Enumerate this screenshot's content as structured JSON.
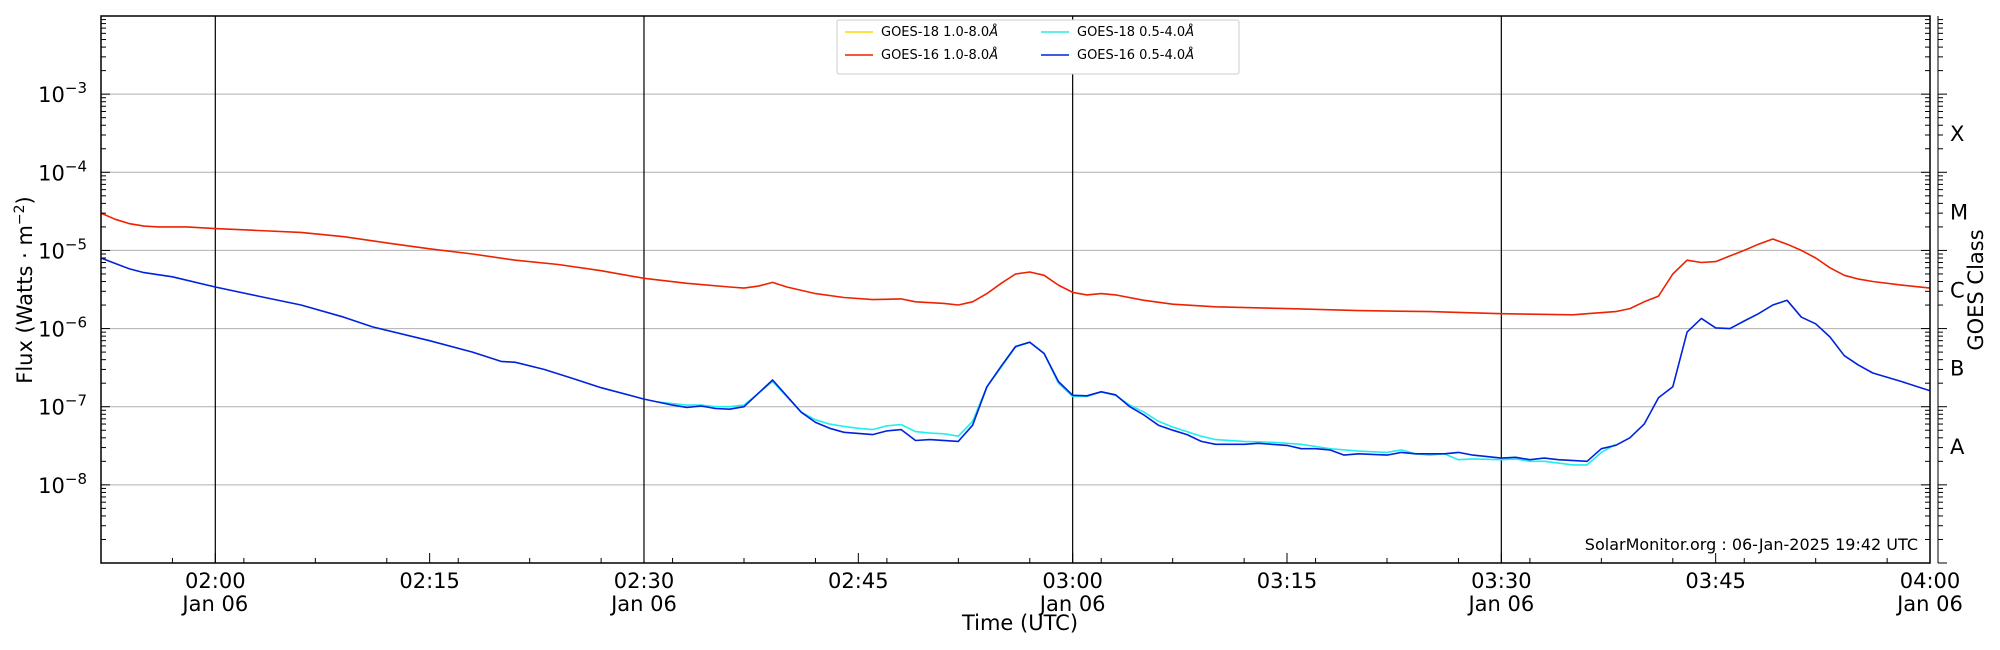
{
  "chart_data": {
    "type": "line",
    "xlabel": "Time (UTC)",
    "ylabel": "Flux (Watts · m",
    "ylabel_sup": "−2",
    "ylabel_right": "GOES Class",
    "x_range": [
      "01:52",
      "04:00"
    ],
    "ylim": [
      1e-09,
      0.01
    ],
    "yscale": "log",
    "grid": "horizontal",
    "legend_position": "top-center",
    "footer": "SolarMonitor.org : 06-Jan-2025 19:42 UTC",
    "x_ticks": [
      {
        "t": "02:00",
        "label": "02:00",
        "date": "Jan 06"
      },
      {
        "t": "02:15",
        "label": "02:15",
        "date": ""
      },
      {
        "t": "02:30",
        "label": "02:30",
        "date": "Jan 06"
      },
      {
        "t": "02:45",
        "label": "02:45",
        "date": ""
      },
      {
        "t": "03:00",
        "label": "03:00",
        "date": "Jan 06"
      },
      {
        "t": "03:15",
        "label": "03:15",
        "date": ""
      },
      {
        "t": "03:30",
        "label": "03:30",
        "date": "Jan 06"
      },
      {
        "t": "03:45",
        "label": "03:45",
        "date": ""
      },
      {
        "t": "04:00",
        "label": "04:00",
        "date": "Jan 06"
      }
    ],
    "y_ticks": [
      {
        "value": 1e-08,
        "mantissa": "10",
        "exp": "−8"
      },
      {
        "value": 1e-07,
        "mantissa": "10",
        "exp": "−7"
      },
      {
        "value": 1e-06,
        "mantissa": "10",
        "exp": "−6"
      },
      {
        "value": 1e-05,
        "mantissa": "10",
        "exp": "−5"
      },
      {
        "value": 0.0001,
        "mantissa": "10",
        "exp": "−4"
      },
      {
        "value": 0.001,
        "mantissa": "10",
        "exp": "−3"
      }
    ],
    "vlines": [
      "02:00",
      "02:30",
      "03:00",
      "03:30"
    ],
    "goes_classes": [
      {
        "label": "A",
        "value": 3.16e-08
      },
      {
        "label": "B",
        "value": 3.16e-07
      },
      {
        "label": "C",
        "value": 3.16e-06
      },
      {
        "label": "M",
        "value": 3.16e-05
      },
      {
        "label": "X",
        "value": 0.000316
      }
    ],
    "series": [
      {
        "name": "GOES-18 1.0-8.0",
        "unit": "Å",
        "color": "#ffd700",
        "points": []
      },
      {
        "name": "GOES-16 1.0-8.0",
        "unit": "Å",
        "color": "#ee2200",
        "points": [
          [
            "01:52",
            3e-05
          ],
          [
            "01:53",
            2.5e-05
          ],
          [
            "01:54",
            2.2e-05
          ],
          [
            "01:55",
            2.05e-05
          ],
          [
            "01:56",
            2e-05
          ],
          [
            "01:58",
            2e-05
          ],
          [
            "02:00",
            1.9e-05
          ],
          [
            "02:03",
            1.8e-05
          ],
          [
            "02:06",
            1.7e-05
          ],
          [
            "02:09",
            1.5e-05
          ],
          [
            "02:12",
            1.25e-05
          ],
          [
            "02:15",
            1.05e-05
          ],
          [
            "02:18",
            9e-06
          ],
          [
            "02:21",
            7.5e-06
          ],
          [
            "02:24",
            6.6e-06
          ],
          [
            "02:27",
            5.5e-06
          ],
          [
            "02:30",
            4.4e-06
          ],
          [
            "02:33",
            3.8e-06
          ],
          [
            "02:36",
            3.4e-06
          ],
          [
            "02:37",
            3.3e-06
          ],
          [
            "02:38",
            3.5e-06
          ],
          [
            "02:39",
            3.9e-06
          ],
          [
            "02:40",
            3.4e-06
          ],
          [
            "02:42",
            2.8e-06
          ],
          [
            "02:44",
            2.5e-06
          ],
          [
            "02:46",
            2.35e-06
          ],
          [
            "02:48",
            2.4e-06
          ],
          [
            "02:49",
            2.2e-06
          ],
          [
            "02:51",
            2.1e-06
          ],
          [
            "02:52",
            2e-06
          ],
          [
            "02:53",
            2.2e-06
          ],
          [
            "02:54",
            2.8e-06
          ],
          [
            "02:55",
            3.8e-06
          ],
          [
            "02:56",
            5e-06
          ],
          [
            "02:57",
            5.3e-06
          ],
          [
            "02:58",
            4.8e-06
          ],
          [
            "02:59",
            3.6e-06
          ],
          [
            "03:00",
            2.9e-06
          ],
          [
            "03:01",
            2.7e-06
          ],
          [
            "03:02",
            2.8e-06
          ],
          [
            "03:03",
            2.7e-06
          ],
          [
            "03:05",
            2.3e-06
          ],
          [
            "03:07",
            2.05e-06
          ],
          [
            "03:10",
            1.9e-06
          ],
          [
            "03:15",
            1.8e-06
          ],
          [
            "03:20",
            1.7e-06
          ],
          [
            "03:25",
            1.65e-06
          ],
          [
            "03:30",
            1.55e-06
          ],
          [
            "03:35",
            1.5e-06
          ],
          [
            "03:36",
            1.55e-06
          ],
          [
            "03:38",
            1.65e-06
          ],
          [
            "03:39",
            1.8e-06
          ],
          [
            "03:40",
            2.2e-06
          ],
          [
            "03:41",
            2.6e-06
          ],
          [
            "03:42",
            5e-06
          ],
          [
            "03:43",
            7.5e-06
          ],
          [
            "03:44",
            7e-06
          ],
          [
            "03:45",
            7.2e-06
          ],
          [
            "03:46",
            8.5e-06
          ],
          [
            "03:47",
            1e-05
          ],
          [
            "03:48",
            1.2e-05
          ],
          [
            "03:49",
            1.4e-05
          ],
          [
            "03:50",
            1.2e-05
          ],
          [
            "03:51",
            1e-05
          ],
          [
            "03:52",
            8e-06
          ],
          [
            "03:53",
            6e-06
          ],
          [
            "03:54",
            4.8e-06
          ],
          [
            "03:55",
            4.3e-06
          ],
          [
            "03:56",
            4e-06
          ],
          [
            "03:58",
            3.6e-06
          ],
          [
            "04:00",
            3.3e-06
          ]
        ]
      },
      {
        "name": "GOES-18 0.5-4.0",
        "unit": "Å",
        "color": "#22eeee",
        "points": [
          [
            "02:31",
            1.15e-07
          ],
          [
            "02:32",
            1.1e-07
          ],
          [
            "02:33",
            1.05e-07
          ],
          [
            "02:34",
            1.05e-07
          ],
          [
            "02:35",
            1e-07
          ],
          [
            "02:36",
            1e-07
          ],
          [
            "02:37",
            1.05e-07
          ],
          [
            "02:39",
            2.1e-07
          ],
          [
            "02:41",
            8.5e-08
          ],
          [
            "02:42",
            6.8e-08
          ],
          [
            "02:43",
            6e-08
          ],
          [
            "02:44",
            5.6e-08
          ],
          [
            "02:45",
            5.3e-08
          ],
          [
            "02:46",
            5.1e-08
          ],
          [
            "02:47",
            5.7e-08
          ],
          [
            "02:48",
            5.9e-08
          ],
          [
            "02:49",
            4.8e-08
          ],
          [
            "02:50",
            4.6e-08
          ],
          [
            "02:51",
            4.5e-08
          ],
          [
            "02:52",
            4.2e-08
          ],
          [
            "02:53",
            6.5e-08
          ],
          [
            "02:54",
            1.8e-07
          ],
          [
            "02:55",
            3.2e-07
          ],
          [
            "02:56",
            5.8e-07
          ],
          [
            "02:57",
            6.7e-07
          ],
          [
            "02:58",
            4.8e-07
          ],
          [
            "02:59",
            2e-07
          ],
          [
            "03:00",
            1.35e-07
          ],
          [
            "03:01",
            1.35e-07
          ],
          [
            "03:02",
            1.55e-07
          ],
          [
            "03:03",
            1.4e-07
          ],
          [
            "03:04",
            1.05e-07
          ],
          [
            "03:05",
            8.5e-08
          ],
          [
            "03:06",
            6.5e-08
          ],
          [
            "03:07",
            5.5e-08
          ],
          [
            "03:08",
            4.8e-08
          ],
          [
            "03:09",
            4.2e-08
          ],
          [
            "03:10",
            3.8e-08
          ],
          [
            "03:12",
            3.6e-08
          ],
          [
            "03:14",
            3.5e-08
          ],
          [
            "03:16",
            3.3e-08
          ],
          [
            "03:18",
            2.9e-08
          ],
          [
            "03:20",
            2.7e-08
          ],
          [
            "03:22",
            2.6e-08
          ],
          [
            "03:23",
            2.8e-08
          ],
          [
            "03:24",
            2.5e-08
          ],
          [
            "03:25",
            2.4e-08
          ],
          [
            "03:26",
            2.5e-08
          ],
          [
            "03:27",
            2.1e-08
          ],
          [
            "03:28",
            2.15e-08
          ],
          [
            "03:30",
            2.1e-08
          ],
          [
            "03:31",
            2.15e-08
          ],
          [
            "03:32",
            2e-08
          ],
          [
            "03:33",
            2e-08
          ],
          [
            "03:34",
            1.9e-08
          ],
          [
            "03:35",
            1.8e-08
          ],
          [
            "03:36",
            1.8e-08
          ],
          [
            "03:37",
            2.6e-08
          ],
          [
            "03:38",
            3.3e-08
          ]
        ]
      },
      {
        "name": "GOES-16 0.5-4.0",
        "unit": "Å",
        "color": "#0022dd",
        "points": [
          [
            "01:52",
            8e-06
          ],
          [
            "01:53",
            6.8e-06
          ],
          [
            "01:54",
            5.8e-06
          ],
          [
            "01:55",
            5.2e-06
          ],
          [
            "01:57",
            4.6e-06
          ],
          [
            "02:00",
            3.4e-06
          ],
          [
            "02:03",
            2.6e-06
          ],
          [
            "02:06",
            2e-06
          ],
          [
            "02:09",
            1.4e-06
          ],
          [
            "02:11",
            1.05e-06
          ],
          [
            "02:15",
            7e-07
          ],
          [
            "02:18",
            5e-07
          ],
          [
            "02:20",
            3.8e-07
          ],
          [
            "02:21",
            3.7e-07
          ],
          [
            "02:23",
            3e-07
          ],
          [
            "02:25",
            2.3e-07
          ],
          [
            "02:27",
            1.75e-07
          ],
          [
            "02:30",
            1.25e-07
          ],
          [
            "02:32",
            1.05e-07
          ],
          [
            "02:33",
            9.8e-08
          ],
          [
            "02:34",
            1.02e-07
          ],
          [
            "02:35",
            9.5e-08
          ],
          [
            "02:36",
            9.3e-08
          ],
          [
            "02:37",
            1e-07
          ],
          [
            "02:39",
            2.2e-07
          ],
          [
            "02:41",
            8.5e-08
          ],
          [
            "02:42",
            6.3e-08
          ],
          [
            "02:43",
            5.3e-08
          ],
          [
            "02:44",
            4.7e-08
          ],
          [
            "02:46",
            4.4e-08
          ],
          [
            "02:47",
            4.9e-08
          ],
          [
            "02:48",
            5.1e-08
          ],
          [
            "02:49",
            3.7e-08
          ],
          [
            "02:50",
            3.8e-08
          ],
          [
            "02:52",
            3.6e-08
          ],
          [
            "02:53",
            5.8e-08
          ],
          [
            "02:54",
            1.8e-07
          ],
          [
            "02:55",
            3.3e-07
          ],
          [
            "02:56",
            5.9e-07
          ],
          [
            "02:57",
            6.7e-07
          ],
          [
            "02:58",
            4.8e-07
          ],
          [
            "02:59",
            2.1e-07
          ],
          [
            "03:00",
            1.4e-07
          ],
          [
            "03:01",
            1.38e-07
          ],
          [
            "03:02",
            1.55e-07
          ],
          [
            "03:03",
            1.42e-07
          ],
          [
            "03:04",
            1e-07
          ],
          [
            "03:05",
            7.8e-08
          ],
          [
            "03:06",
            5.8e-08
          ],
          [
            "03:07",
            5e-08
          ],
          [
            "03:08",
            4.4e-08
          ],
          [
            "03:09",
            3.6e-08
          ],
          [
            "03:10",
            3.3e-08
          ],
          [
            "03:12",
            3.3e-08
          ],
          [
            "03:13",
            3.4e-08
          ],
          [
            "03:15",
            3.2e-08
          ],
          [
            "03:16",
            2.9e-08
          ],
          [
            "03:17",
            2.9e-08
          ],
          [
            "03:18",
            2.8e-08
          ],
          [
            "03:19",
            2.4e-08
          ],
          [
            "03:20",
            2.5e-08
          ],
          [
            "03:22",
            2.4e-08
          ],
          [
            "03:23",
            2.6e-08
          ],
          [
            "03:24",
            2.5e-08
          ],
          [
            "03:26",
            2.5e-08
          ],
          [
            "03:27",
            2.6e-08
          ],
          [
            "03:28",
            2.4e-08
          ],
          [
            "03:30",
            2.2e-08
          ],
          [
            "03:31",
            2.25e-08
          ],
          [
            "03:32",
            2.1e-08
          ],
          [
            "03:33",
            2.2e-08
          ],
          [
            "03:34",
            2.1e-08
          ],
          [
            "03:36",
            2e-08
          ],
          [
            "03:37",
            2.9e-08
          ],
          [
            "03:38",
            3.2e-08
          ],
          [
            "03:39",
            4e-08
          ],
          [
            "03:40",
            6e-08
          ],
          [
            "03:41",
            1.3e-07
          ],
          [
            "03:42",
            1.8e-07
          ],
          [
            "03:43",
            9e-07
          ],
          [
            "03:44",
            1.35e-06
          ],
          [
            "03:45",
            1.02e-06
          ],
          [
            "03:46",
            1e-06
          ],
          [
            "03:47",
            1.25e-06
          ],
          [
            "03:48",
            1.55e-06
          ],
          [
            "03:49",
            2e-06
          ],
          [
            "03:50",
            2.3e-06
          ],
          [
            "03:51",
            1.4e-06
          ],
          [
            "03:52",
            1.15e-06
          ],
          [
            "03:53",
            7.8e-07
          ],
          [
            "03:54",
            4.5e-07
          ],
          [
            "03:55",
            3.4e-07
          ],
          [
            "03:56",
            2.7e-07
          ],
          [
            "03:58",
            2.1e-07
          ],
          [
            "04:00",
            1.6e-07
          ]
        ]
      }
    ]
  }
}
